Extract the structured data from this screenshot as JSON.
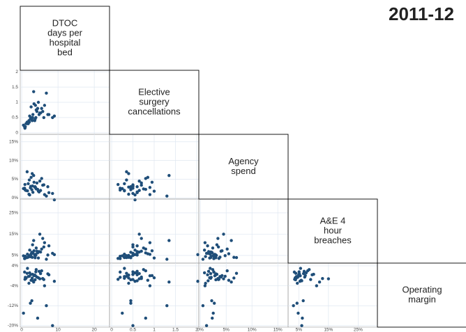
{
  "chart_data": {
    "type": "scatter-matrix",
    "title": "2011-12",
    "color": "#1f4e79",
    "grid": true,
    "variables": [
      {
        "label": [
          "DTOC",
          "days per",
          "hospital",
          "bed"
        ],
        "lim": [
          -0.4,
          24.2
        ],
        "ticks": [
          0,
          10,
          20
        ],
        "values": [
          1.2,
          2.5,
          3.1,
          0.8,
          4.2,
          5.5,
          2.0,
          3.8,
          6.1,
          1.5,
          2.8,
          4.6,
          7.2,
          3.3,
          0.5,
          2.2,
          5.0,
          3.6,
          8.5,
          1.8,
          4.0,
          2.6,
          6.8,
          3.0,
          1.0,
          4.8,
          9.0,
          2.4,
          3.4,
          5.8,
          1.6,
          2.9,
          4.4,
          7.5,
          0.9,
          3.9,
          6.3,
          2.1,
          5.2,
          3.7
        ]
      },
      {
        "label": [
          "Elective",
          "surgery",
          "cancellations"
        ],
        "lim": [
          -0.05,
          2.05
        ],
        "ticks": [
          0,
          0.5,
          1,
          1.5,
          2
        ],
        "values": [
          0.3,
          0.5,
          0.6,
          0.2,
          0.7,
          0.8,
          0.4,
          0.9,
          0.5,
          0.35,
          0.45,
          1.0,
          0.6,
          1.35,
          0.25,
          0.55,
          0.65,
          0.4,
          0.5,
          0.3,
          0.75,
          0.85,
          1.3,
          0.5,
          0.2,
          0.6,
          0.55,
          0.45,
          0.95,
          0.7,
          0.3,
          0.4,
          0.8,
          0.6,
          0.15,
          0.5,
          0.9,
          0.35,
          0.65,
          0.45
        ]
      },
      {
        "label": [
          "Agency",
          "spend"
        ],
        "lim": [
          -0.3,
          17
        ],
        "ticks": [
          {
            "value": 0,
            "label": "0%"
          },
          {
            "value": 5,
            "label": "5%"
          },
          {
            "value": 10,
            "label": "10%"
          },
          {
            "value": 15,
            "label": "15%"
          }
        ],
        "values": [
          2.0,
          3.1,
          1.5,
          2.6,
          4.0,
          5.2,
          1.0,
          2.8,
          3.5,
          7.0,
          2.2,
          1.8,
          3.0,
          6.0,
          2.5,
          0.8,
          4.5,
          2.9,
          1.2,
          3.8,
          2.4,
          5.5,
          0.5,
          3.2,
          2.1,
          1.6,
          -0.5,
          2.7,
          4.2,
          3.4,
          1.9,
          6.5,
          2.3,
          1.4,
          3.6,
          2.6,
          0.9,
          4.8,
          2.0,
          3.0
        ]
      },
      {
        "label": [
          "A&E 4",
          "hour",
          "breaches"
        ],
        "lim": [
          1.4,
          31.5
        ],
        "ticks": [
          {
            "value": 5,
            "label": "5%"
          },
          {
            "value": 15,
            "label": "15%"
          },
          {
            "value": 25,
            "label": "25%"
          }
        ],
        "values": [
          4,
          5,
          6,
          3.5,
          7,
          8,
          4.5,
          5.5,
          9,
          4,
          6.5,
          3.8,
          5.2,
          12,
          4.8,
          7.5,
          15,
          5,
          6,
          4.2,
          8.5,
          5.8,
          3.2,
          10,
          4.6,
          6.8,
          5.4,
          4.4,
          7.2,
          13,
          5.6,
          4.1,
          6.2,
          9.5,
          3.6,
          5.1,
          11,
          4.9,
          6.6,
          3.9
        ]
      },
      {
        "label": [
          "Operating",
          "margin"
        ],
        "lim": [
          -20.6,
          5.1
        ],
        "ticks": [
          {
            "value": 4,
            "label": "4%"
          },
          {
            "value": -4,
            "label": "-4%"
          },
          {
            "value": -12,
            "label": "-12%"
          },
          {
            "value": -20,
            "label": "-20%"
          }
        ],
        "values": [
          -1,
          0.5,
          -2,
          1.5,
          -0.5,
          2,
          -3,
          0,
          -1.5,
          1,
          -10,
          -0.8,
          0.8,
          -2.5,
          -15,
          1.2,
          -1.2,
          0.3,
          -20,
          -0.3,
          2.5,
          -1.8,
          -12,
          0.6,
          -0.6,
          1.8,
          -2.2,
          -11,
          0.1,
          -1.1,
          3,
          -0.9,
          -17,
          0.4,
          -1.4,
          1.6,
          -4,
          -0.2,
          0.9,
          -1.6
        ]
      }
    ]
  }
}
